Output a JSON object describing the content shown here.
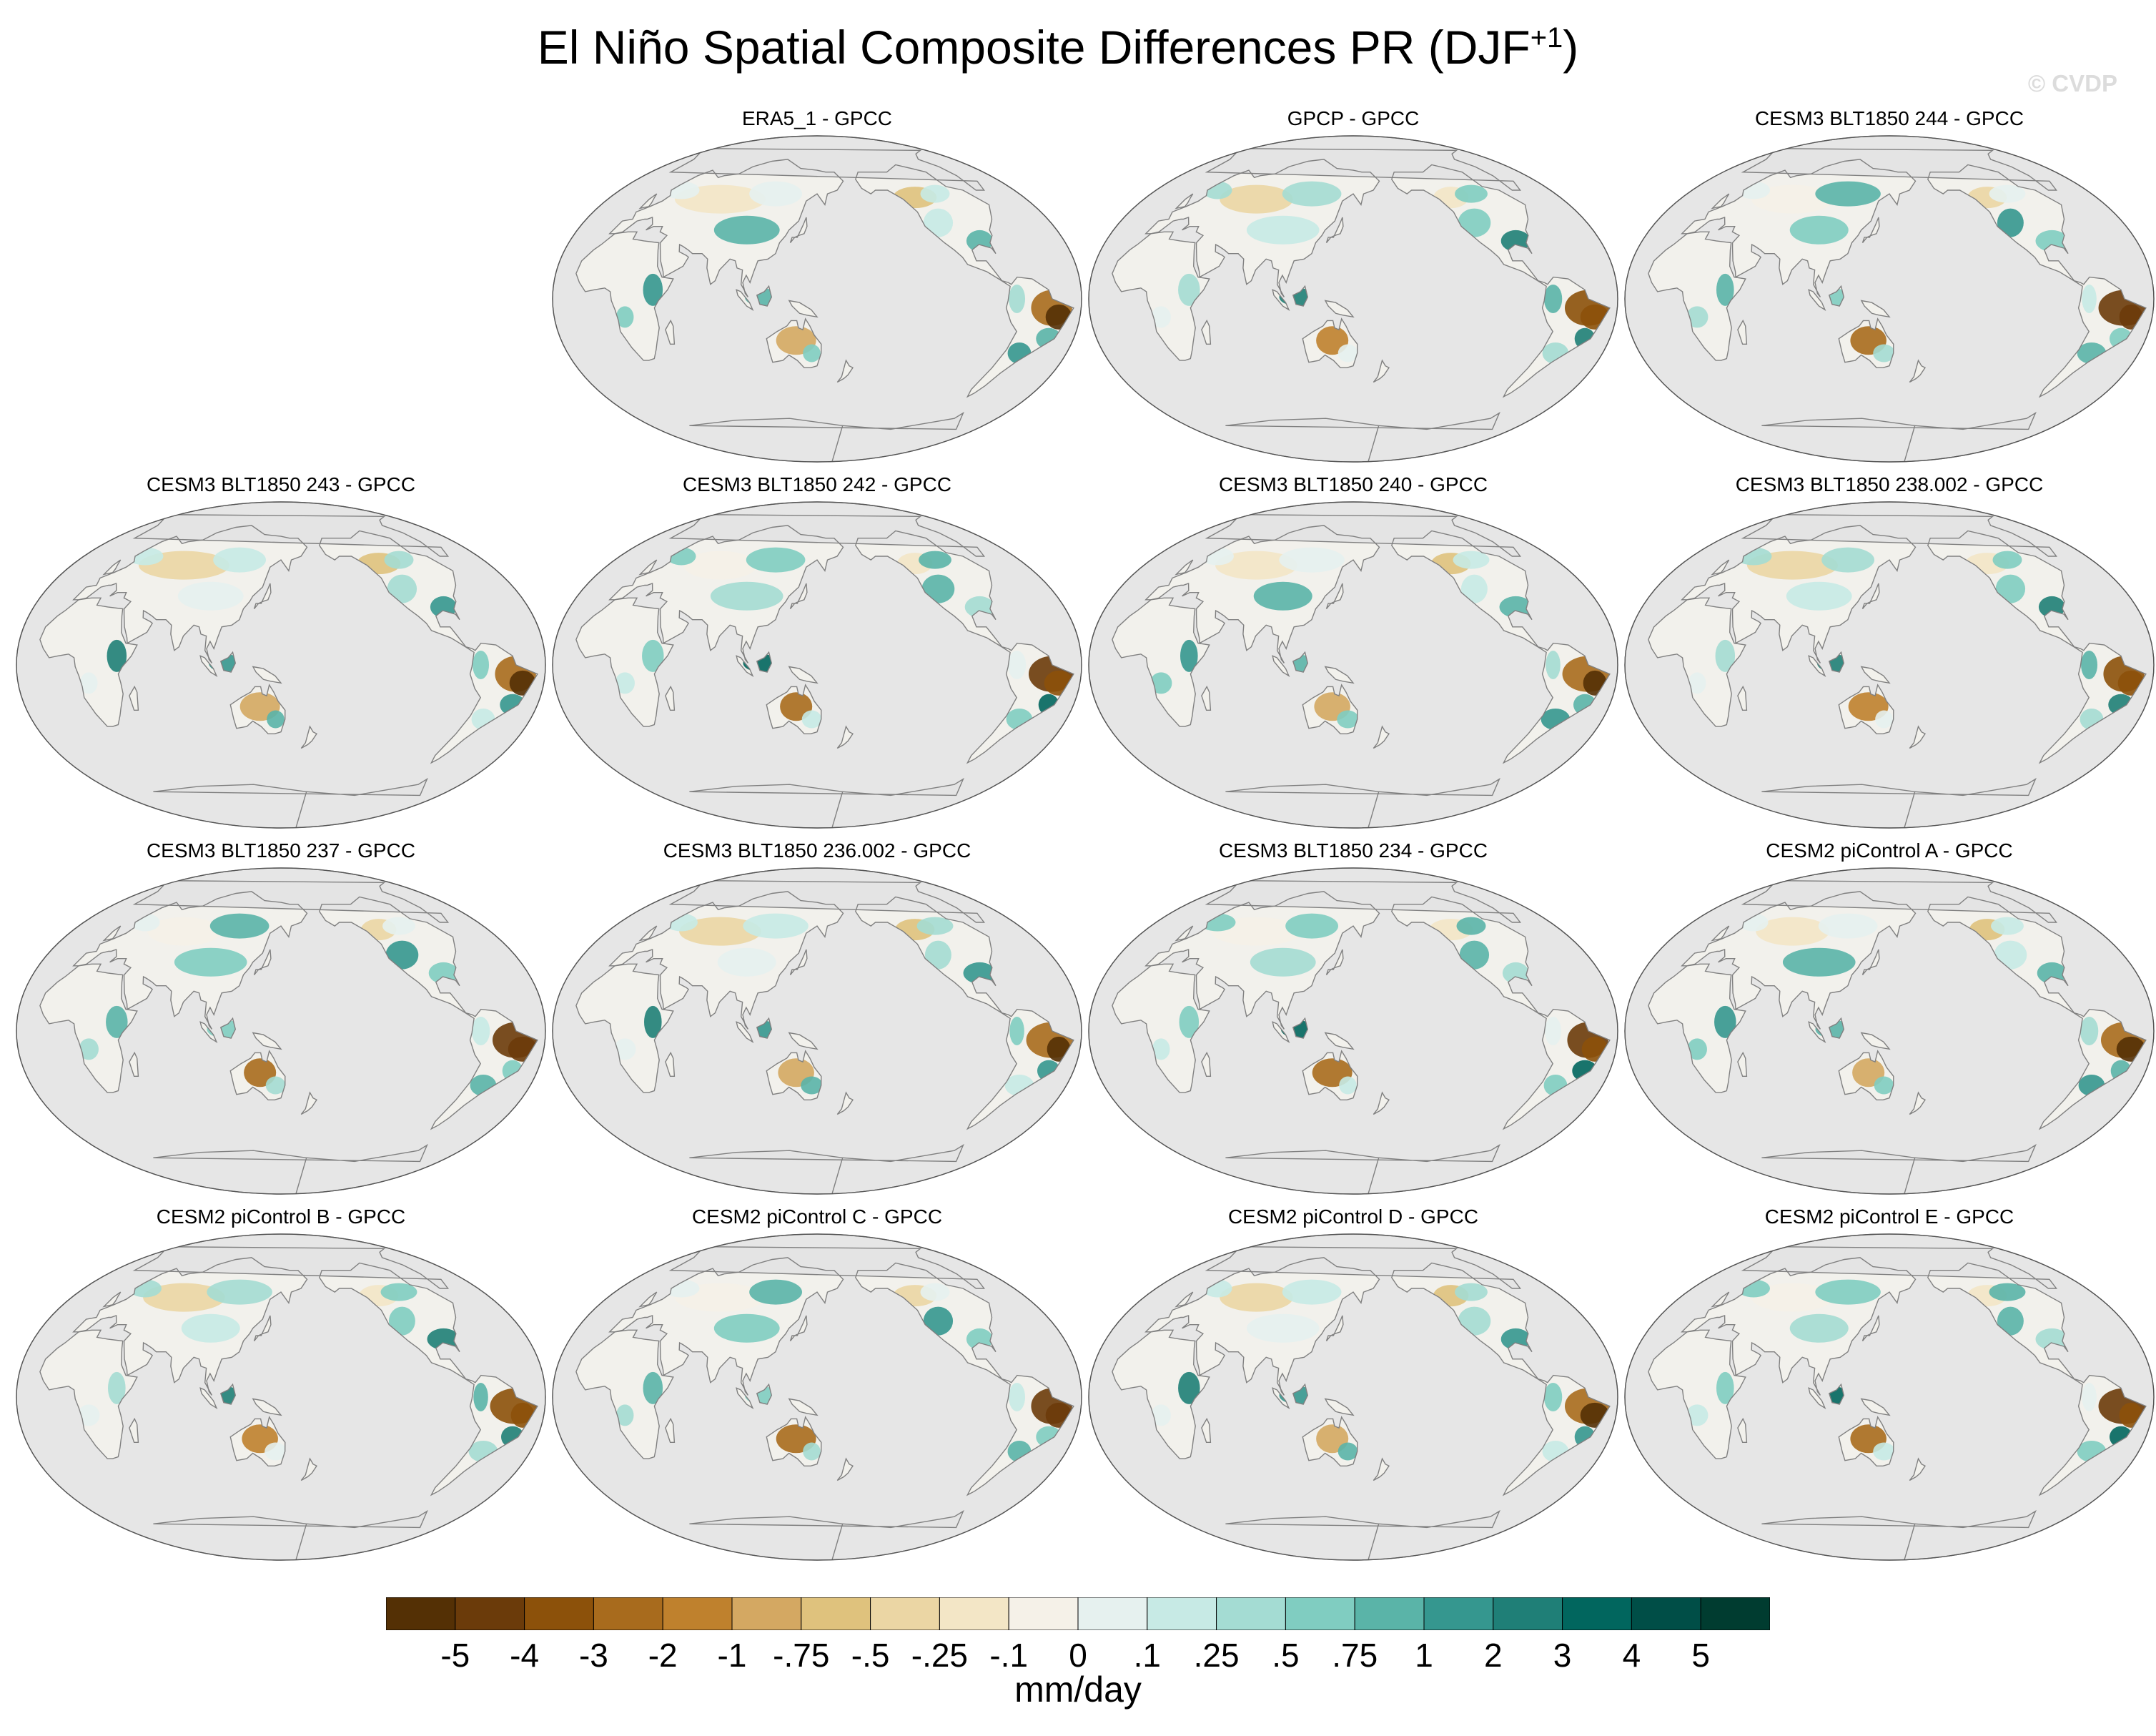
{
  "title": "El Niño Spatial Composite Differences PR (DJF",
  "title_sup": "+1",
  "title_close": ")",
  "copyright": "© CVDP",
  "panels": [
    "ERA5_1 - GPCC",
    "GPCP - GPCC",
    "CESM3 BLT1850 244 - GPCC",
    "CESM3 BLT1850 243 - GPCC",
    "CESM3 BLT1850 242 - GPCC",
    "CESM3 BLT1850 240 - GPCC",
    "CESM3 BLT1850 238.002 - GPCC",
    "CESM3 BLT1850 237 - GPCC",
    "CESM3 BLT1850 236.002 - GPCC",
    "CESM3 BLT1850 234 - GPCC",
    "CESM2 piControl A - GPCC",
    "CESM2 piControl B - GPCC",
    "CESM2 piControl C - GPCC",
    "CESM2 piControl D - GPCC",
    "CESM2 piControl E - GPCC"
  ],
  "colorbar": {
    "colors": [
      "#543005",
      "#6b3b0a",
      "#8c510a",
      "#a86b1d",
      "#bf812d",
      "#d4a862",
      "#dfc27d",
      "#ebd6a4",
      "#f3e6c6",
      "#f5f1e8",
      "#e6f1ef",
      "#c7eae5",
      "#a4dcd3",
      "#80cdc1",
      "#5ab4a8",
      "#35978f",
      "#1f7f77",
      "#01665e",
      "#004e47",
      "#003c30"
    ],
    "labels": [
      "-5",
      "-4",
      "-3",
      "-2",
      "-1",
      "-.75",
      "-.5",
      "-.25",
      "-.1",
      "0",
      ".1",
      ".25",
      ".5",
      ".75",
      "1",
      "2",
      "3",
      "4",
      "5"
    ],
    "units": "mm/day"
  },
  "style": {
    "ocean": "#e6e6e6",
    "coast": "#808080",
    "land_neutral": "#f2f1ec"
  }
}
